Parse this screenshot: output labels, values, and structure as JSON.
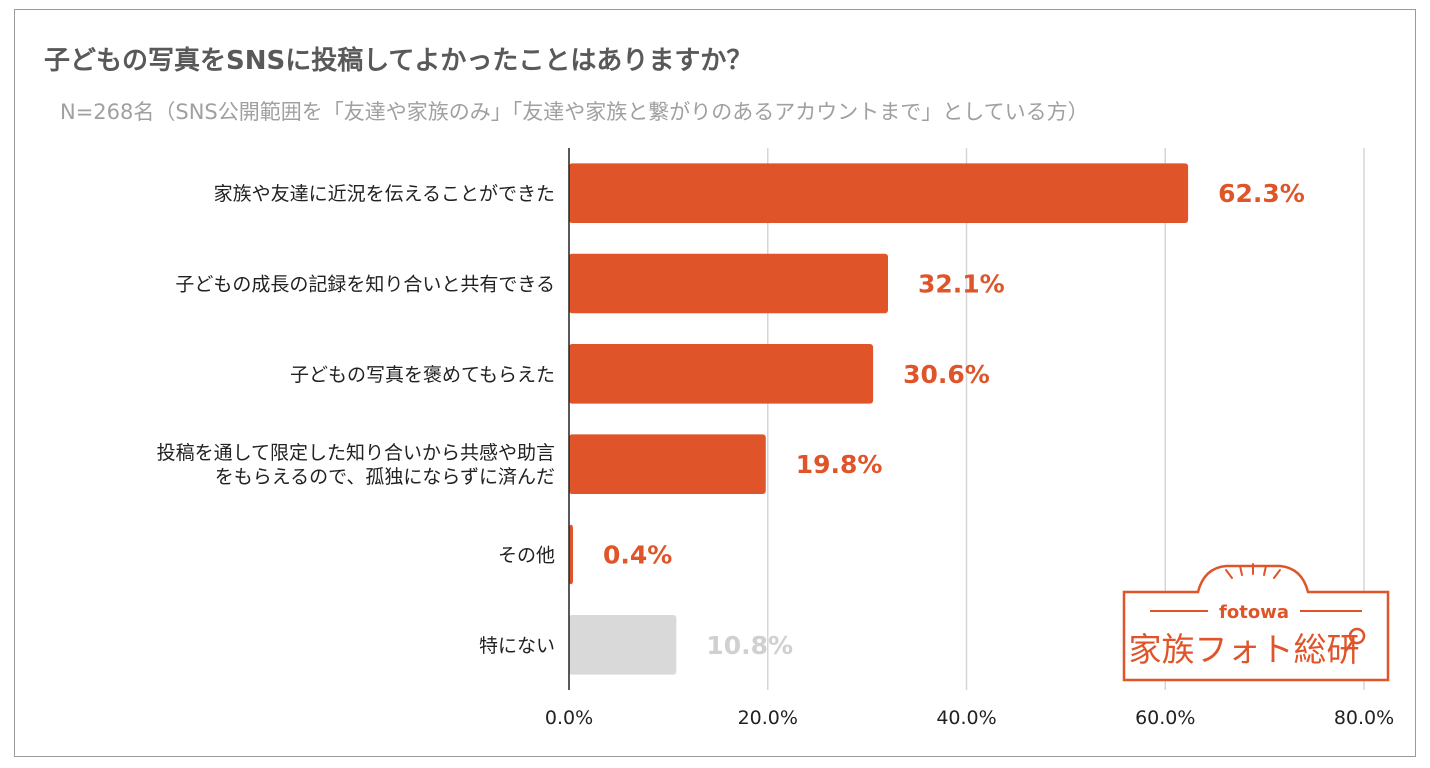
{
  "header": {
    "title": "子どもの写真をSNSに投稿してよかったことはありますか？",
    "subtitle": "N=268名（SNS公開範囲を「友達や家族のみ」「友達や家族と繋がりのあるアカウントまで」としている方）"
  },
  "colors": {
    "accent": "#df5429",
    "neutral_bar": "#d9d9d9",
    "neutral_label": "#d0d0d0",
    "grid": "#d6d6d6",
    "axis": "#222222"
  },
  "logo": {
    "brand": "fotowa",
    "name": "家族フォト総研"
  },
  "chart_data": {
    "type": "bar",
    "orientation": "horizontal",
    "categories": [
      [
        "家族や友達に近況を伝えることができた"
      ],
      [
        "子どもの成長の記録を知り合いと共有できる"
      ],
      [
        "子どもの写真を褒めてもらえた"
      ],
      [
        "投稿を通して限定した知り合いから共感や助言",
        "をもらえるので、孤独にならずに済んだ"
      ],
      [
        "その他"
      ],
      [
        "特にない"
      ]
    ],
    "values": [
      62.3,
      32.1,
      30.6,
      19.8,
      0.4,
      10.8
    ],
    "value_labels": [
      "62.3%",
      "32.1%",
      "30.6%",
      "19.8%",
      "0.4%",
      "10.8%"
    ],
    "highlight": [
      true,
      true,
      true,
      true,
      true,
      false
    ],
    "xlim": [
      0,
      80
    ],
    "xticks": [
      0,
      20,
      40,
      60,
      80
    ],
    "xtick_labels": [
      "0.0%",
      "20.0%",
      "40.0%",
      "60.0%",
      "80.0%"
    ],
    "grid": true
  }
}
